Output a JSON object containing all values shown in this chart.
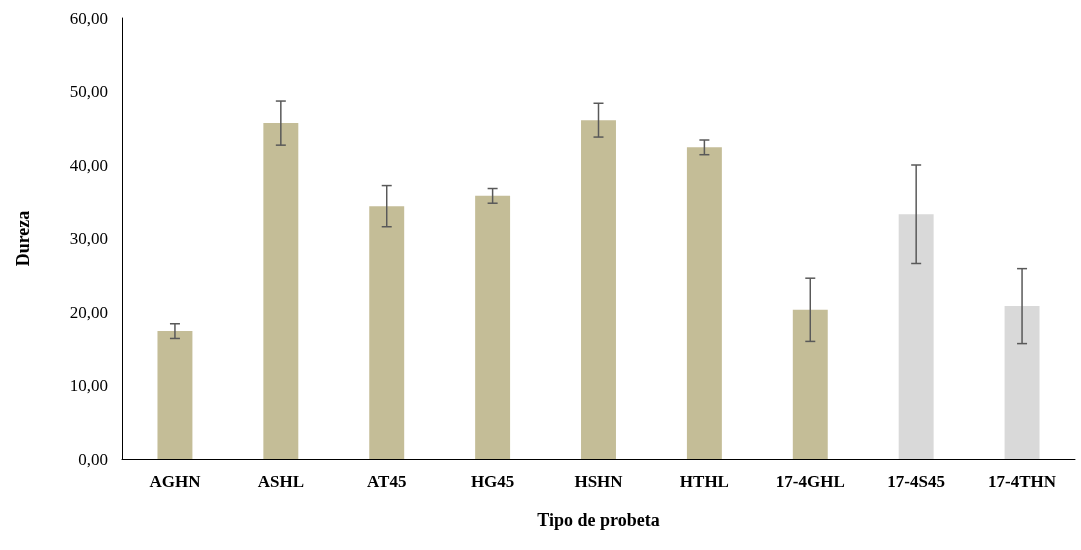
{
  "chart_data": {
    "type": "bar",
    "xlabel": "Tipo de probeta",
    "ylabel": "Dureza",
    "categories": [
      "AGHN",
      "ASHL",
      "AT45",
      "HG45",
      "HSHN",
      "HTHL",
      "17-4GHL",
      "17-4S45",
      "17-4THN"
    ],
    "values": [
      17.4,
      45.7,
      34.4,
      35.8,
      46.1,
      42.4,
      20.3,
      33.3,
      20.8
    ],
    "colors": [
      "#c4bd97",
      "#c4bd97",
      "#c4bd97",
      "#c4bd97",
      "#c4bd97",
      "#c4bd97",
      "#c4bd97",
      "#d9d9d9",
      "#d9d9d9"
    ],
    "errors": [
      1.0,
      3.0,
      2.8,
      1.0,
      2.3,
      1.0,
      4.3,
      6.7,
      5.1
    ],
    "ylim": [
      0,
      60
    ],
    "yticks": [
      {
        "value": 0,
        "label": "0,00"
      },
      {
        "value": 10,
        "label": "10,00"
      },
      {
        "value": 20,
        "label": "20,00"
      },
      {
        "value": 30,
        "label": "30,00"
      },
      {
        "value": 40,
        "label": "40,00"
      },
      {
        "value": 50,
        "label": "50,00"
      },
      {
        "value": 60,
        "label": "60,00"
      }
    ],
    "grid": false
  }
}
